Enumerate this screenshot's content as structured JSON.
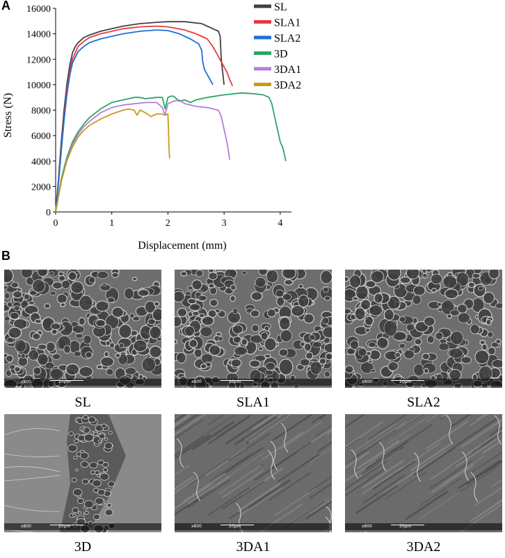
{
  "panel_a": {
    "letter": "A"
  },
  "panel_b": {
    "letter": "B"
  },
  "chart_data": {
    "type": "line",
    "title": "",
    "xlabel": "Displacement (mm)",
    "ylabel": "Stress (N)",
    "xlim": [
      0,
      4.2
    ],
    "ylim": [
      0,
      16000
    ],
    "xticks": [
      0,
      1,
      2,
      3,
      4
    ],
    "yticks": [
      0,
      2000,
      4000,
      6000,
      8000,
      10000,
      12000,
      14000,
      16000
    ],
    "grid": false,
    "legend_position": "top-right",
    "series": [
      {
        "name": "SL",
        "color": "#404040",
        "x": [
          0,
          0.05,
          0.1,
          0.15,
          0.2,
          0.25,
          0.3,
          0.35,
          0.4,
          0.5,
          0.6,
          0.8,
          1.0,
          1.2,
          1.5,
          1.8,
          2.0,
          2.3,
          2.6,
          2.8,
          2.9,
          2.93,
          2.95,
          3.0
        ],
        "y": [
          0,
          2500,
          5500,
          8000,
          10000,
          11500,
          12500,
          13000,
          13300,
          13700,
          13900,
          14200,
          14400,
          14600,
          14800,
          14900,
          14950,
          14950,
          14800,
          14400,
          14200,
          13800,
          12000,
          10000
        ]
      },
      {
        "name": "SLA1",
        "color": "#e8393f",
        "x": [
          0,
          0.05,
          0.1,
          0.15,
          0.2,
          0.25,
          0.3,
          0.4,
          0.5,
          0.6,
          0.8,
          1.0,
          1.2,
          1.5,
          1.8,
          2.0,
          2.3,
          2.5,
          2.7,
          2.8,
          2.9,
          3.0,
          3.05,
          3.1,
          3.15
        ],
        "y": [
          0,
          2300,
          5000,
          7500,
          9500,
          11000,
          12000,
          13000,
          13400,
          13700,
          14000,
          14200,
          14400,
          14550,
          14600,
          14550,
          14300,
          14000,
          13600,
          13000,
          12200,
          11400,
          11000,
          10400,
          9900
        ]
      },
      {
        "name": "SLA2",
        "color": "#1f6fd6",
        "x": [
          0,
          0.05,
          0.1,
          0.15,
          0.2,
          0.25,
          0.3,
          0.4,
          0.5,
          0.6,
          0.8,
          1.0,
          1.2,
          1.5,
          1.8,
          2.0,
          2.2,
          2.4,
          2.55,
          2.6,
          2.62,
          2.65,
          2.7,
          2.75,
          2.8
        ],
        "y": [
          0,
          2200,
          4800,
          7200,
          9200,
          10700,
          11700,
          12600,
          13000,
          13300,
          13600,
          13800,
          14000,
          14200,
          14300,
          14250,
          14000,
          13600,
          13200,
          12700,
          11800,
          11200,
          10800,
          10400,
          10000
        ]
      },
      {
        "name": "3D",
        "color": "#2aa567",
        "x": [
          0,
          0.05,
          0.1,
          0.2,
          0.3,
          0.4,
          0.5,
          0.6,
          0.8,
          1.0,
          1.2,
          1.4,
          1.5,
          1.6,
          1.8,
          1.9,
          1.95,
          2.0,
          2.05,
          2.1,
          2.2,
          2.3,
          2.4,
          2.5,
          2.7,
          3.0,
          3.3,
          3.5,
          3.7,
          3.8,
          3.85,
          3.9,
          3.95,
          4.0,
          4.05,
          4.1
        ],
        "y": [
          0,
          1300,
          2600,
          4300,
          5500,
          6300,
          6900,
          7400,
          8100,
          8600,
          8800,
          9000,
          9000,
          8900,
          9000,
          9000,
          8100,
          9000,
          9100,
          9100,
          8700,
          8800,
          8600,
          8800,
          9000,
          9200,
          9350,
          9300,
          9200,
          9000,
          8500,
          7500,
          6500,
          5500,
          5000,
          4000
        ]
      },
      {
        "name": "3DA1",
        "color": "#b07fd9",
        "x": [
          0,
          0.05,
          0.1,
          0.2,
          0.3,
          0.4,
          0.5,
          0.6,
          0.8,
          1.0,
          1.2,
          1.4,
          1.6,
          1.8,
          1.9,
          1.95,
          2.0,
          2.1,
          2.2,
          2.3,
          2.5,
          2.7,
          2.9,
          2.95,
          3.0,
          3.05,
          3.08,
          3.1
        ],
        "y": [
          0,
          1200,
          2400,
          4100,
          5300,
          6100,
          6700,
          7100,
          7800,
          8200,
          8400,
          8500,
          8600,
          8600,
          8200,
          7600,
          8500,
          8700,
          8800,
          8500,
          8300,
          8200,
          8000,
          7500,
          6500,
          5500,
          4700,
          4100
        ]
      },
      {
        "name": "3DA2",
        "color": "#c89a1c",
        "x": [
          0,
          0.05,
          0.1,
          0.2,
          0.3,
          0.4,
          0.5,
          0.6,
          0.8,
          1.0,
          1.2,
          1.3,
          1.4,
          1.45,
          1.5,
          1.6,
          1.7,
          1.8,
          1.9,
          1.95,
          2.0,
          2.01,
          2.02,
          2.03
        ],
        "y": [
          0,
          1200,
          2400,
          4000,
          5100,
          5900,
          6400,
          6800,
          7300,
          7700,
          8000,
          8100,
          8000,
          7600,
          8000,
          7800,
          7500,
          7700,
          7700,
          7600,
          7700,
          6500,
          5000,
          4200
        ]
      }
    ]
  },
  "sem": {
    "images": [
      {
        "label": "SL",
        "magnification": "x800",
        "scale": "20μm",
        "style": "dimpled"
      },
      {
        "label": "SLA1",
        "magnification": "x800",
        "scale": "20μm",
        "style": "dimpled"
      },
      {
        "label": "SLA2",
        "magnification": "x800",
        "scale": "20μm",
        "style": "dimpled"
      },
      {
        "label": "3D",
        "magnification": "x800",
        "scale": "20μm",
        "style": "mixed"
      },
      {
        "label": "3DA1",
        "magnification": "x800",
        "scale": "20μm",
        "style": "smooth"
      },
      {
        "label": "3DA2",
        "magnification": "x800",
        "scale": "20μm",
        "style": "smooth"
      }
    ]
  }
}
